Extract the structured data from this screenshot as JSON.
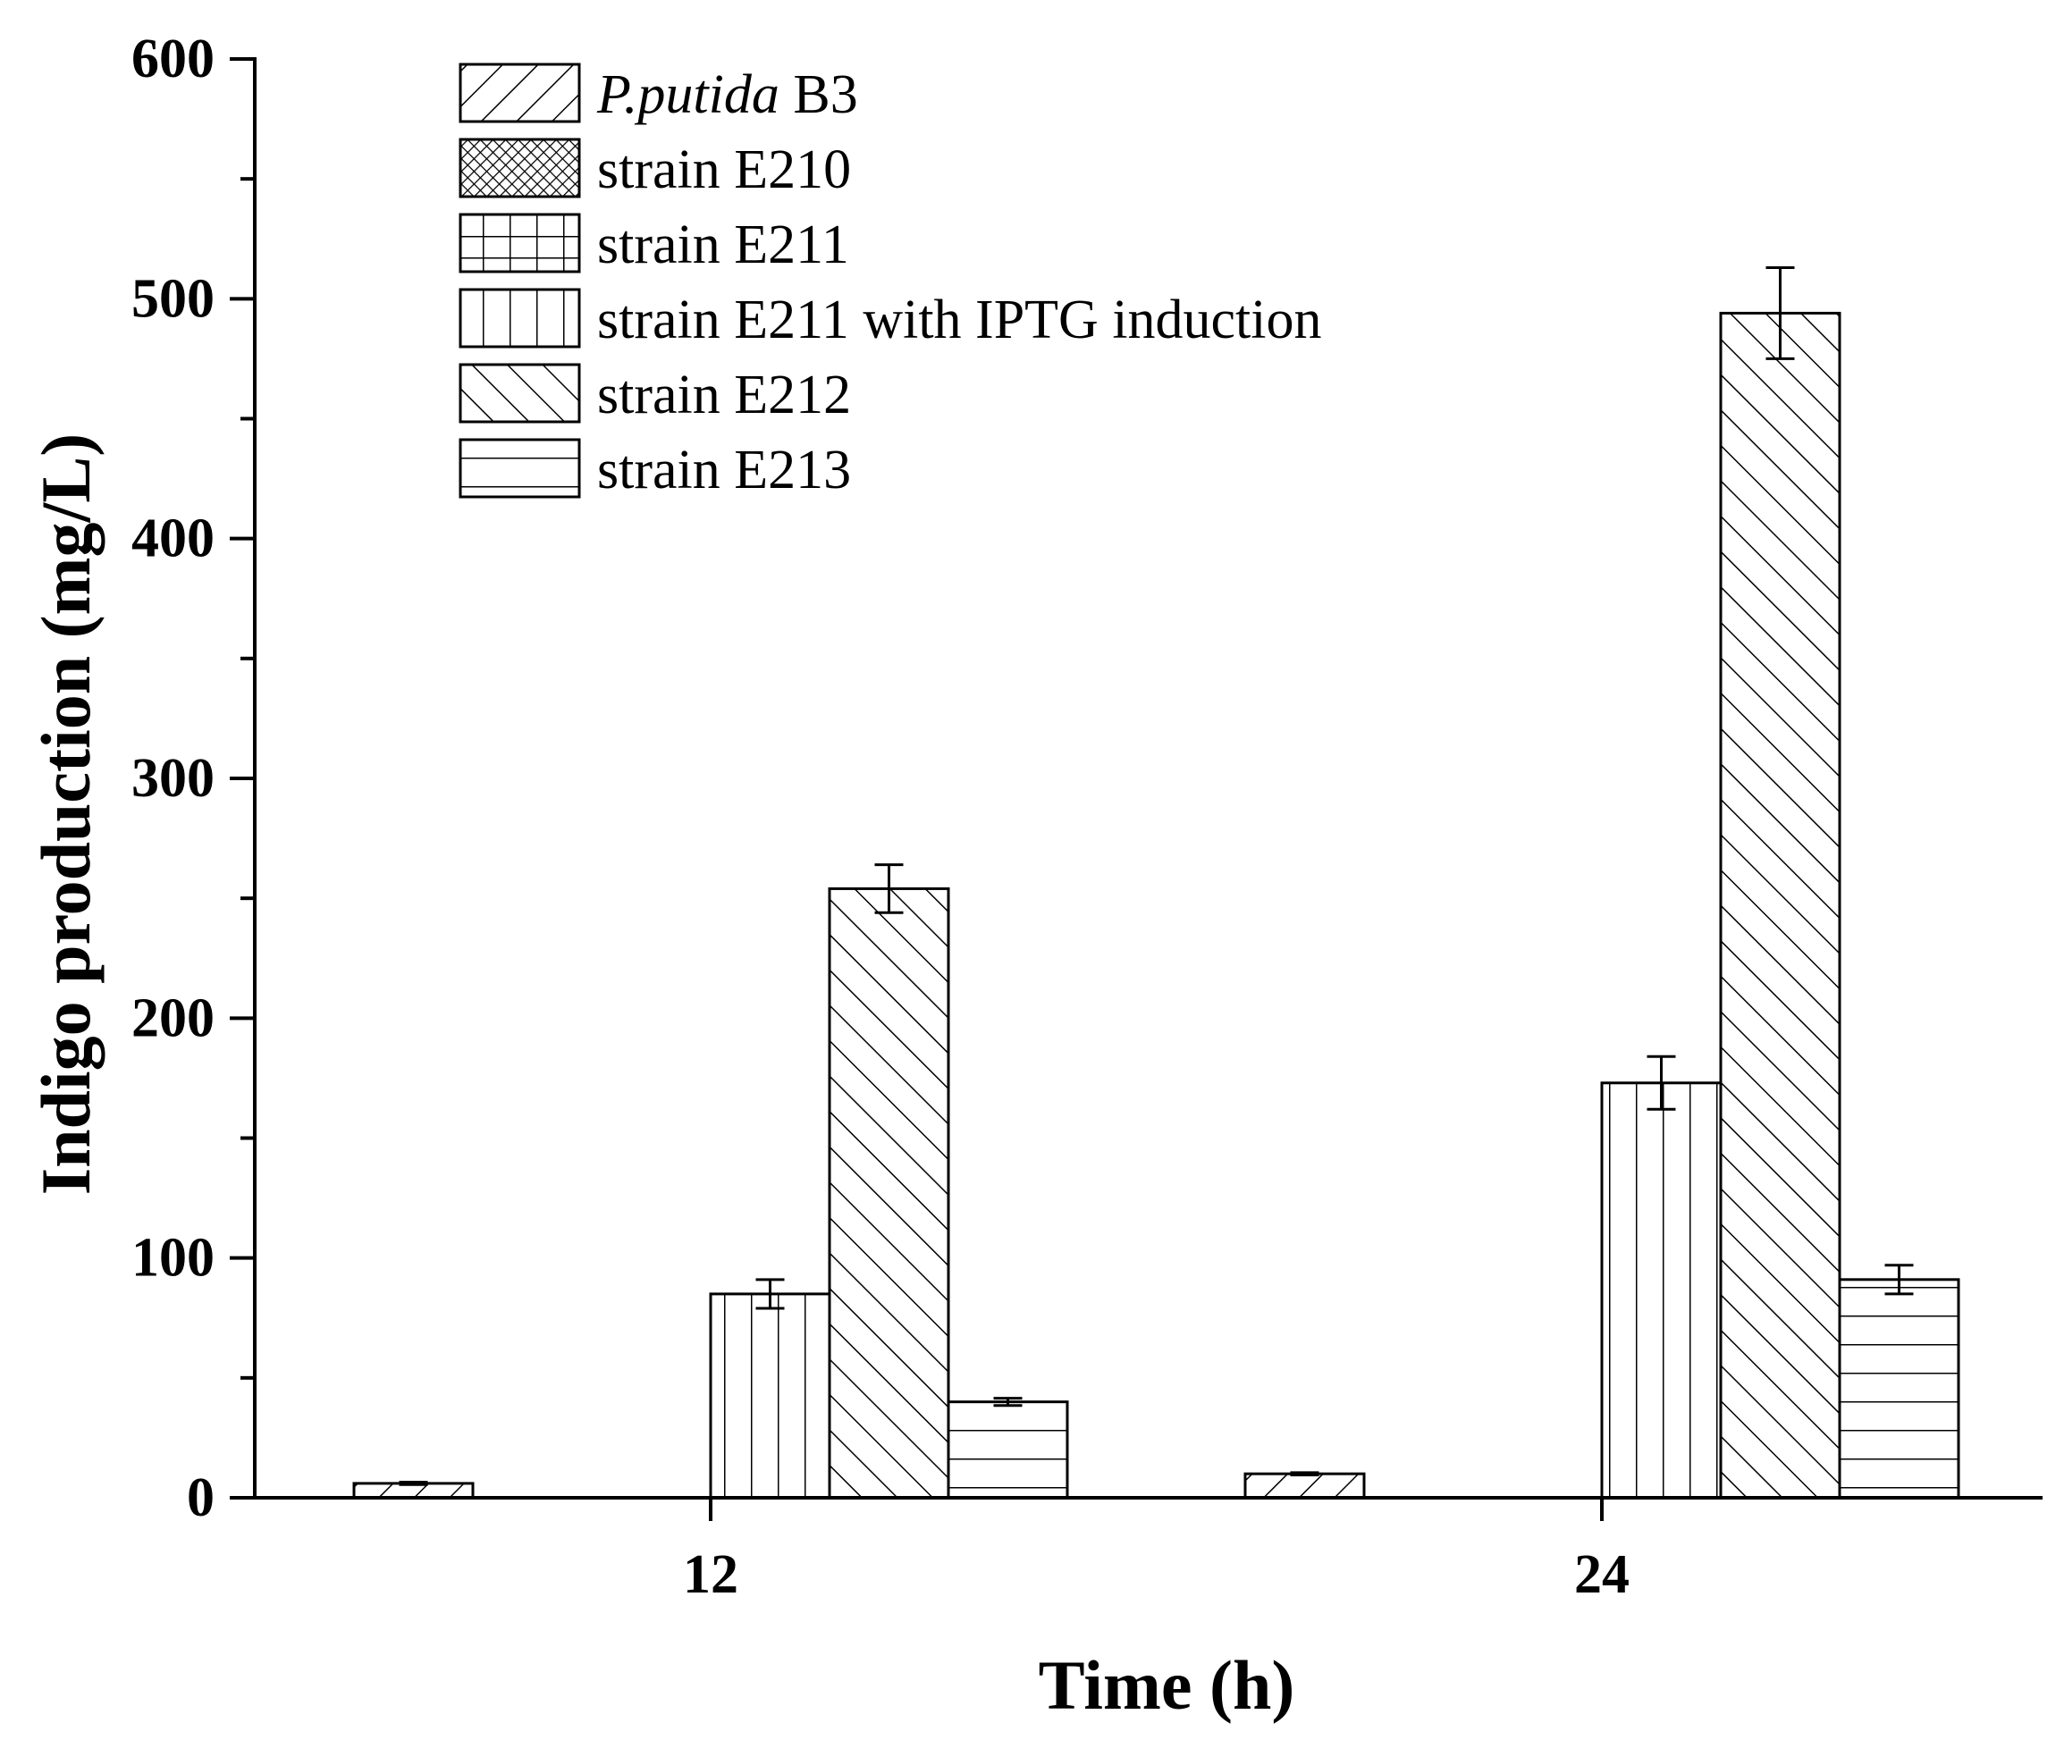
{
  "chart_data": {
    "type": "bar",
    "title": "",
    "xlabel": "Time (h)",
    "ylabel": "Indigo production (mg/L)",
    "ylim": [
      0,
      600
    ],
    "yticks": [
      0,
      100,
      200,
      300,
      400,
      500,
      600
    ],
    "categories": [
      "12",
      "24"
    ],
    "legend_position": "top-left",
    "series": [
      {
        "name": "P.putida B3",
        "name_italic": "P.putida",
        "name_rest": " B3",
        "pattern": "diag-forward",
        "values": [
          6,
          10
        ],
        "errors": [
          0.5,
          0.5
        ]
      },
      {
        "name": "strain E210",
        "pattern": "crosshatch",
        "values": [
          0,
          0
        ],
        "errors": [
          0,
          0
        ]
      },
      {
        "name": "strain E211",
        "pattern": "grid",
        "values": [
          0,
          0
        ],
        "errors": [
          0,
          0
        ]
      },
      {
        "name": "strain E211 with IPTG induction",
        "pattern": "vertical",
        "values": [
          85,
          173
        ],
        "errors": [
          6,
          11
        ]
      },
      {
        "name": "strain E212",
        "pattern": "diag-backward",
        "values": [
          254,
          494
        ],
        "errors": [
          10,
          19
        ]
      },
      {
        "name": "strain E213",
        "pattern": "horizontal",
        "values": [
          40,
          91
        ],
        "errors": [
          1.5,
          6
        ]
      }
    ]
  }
}
